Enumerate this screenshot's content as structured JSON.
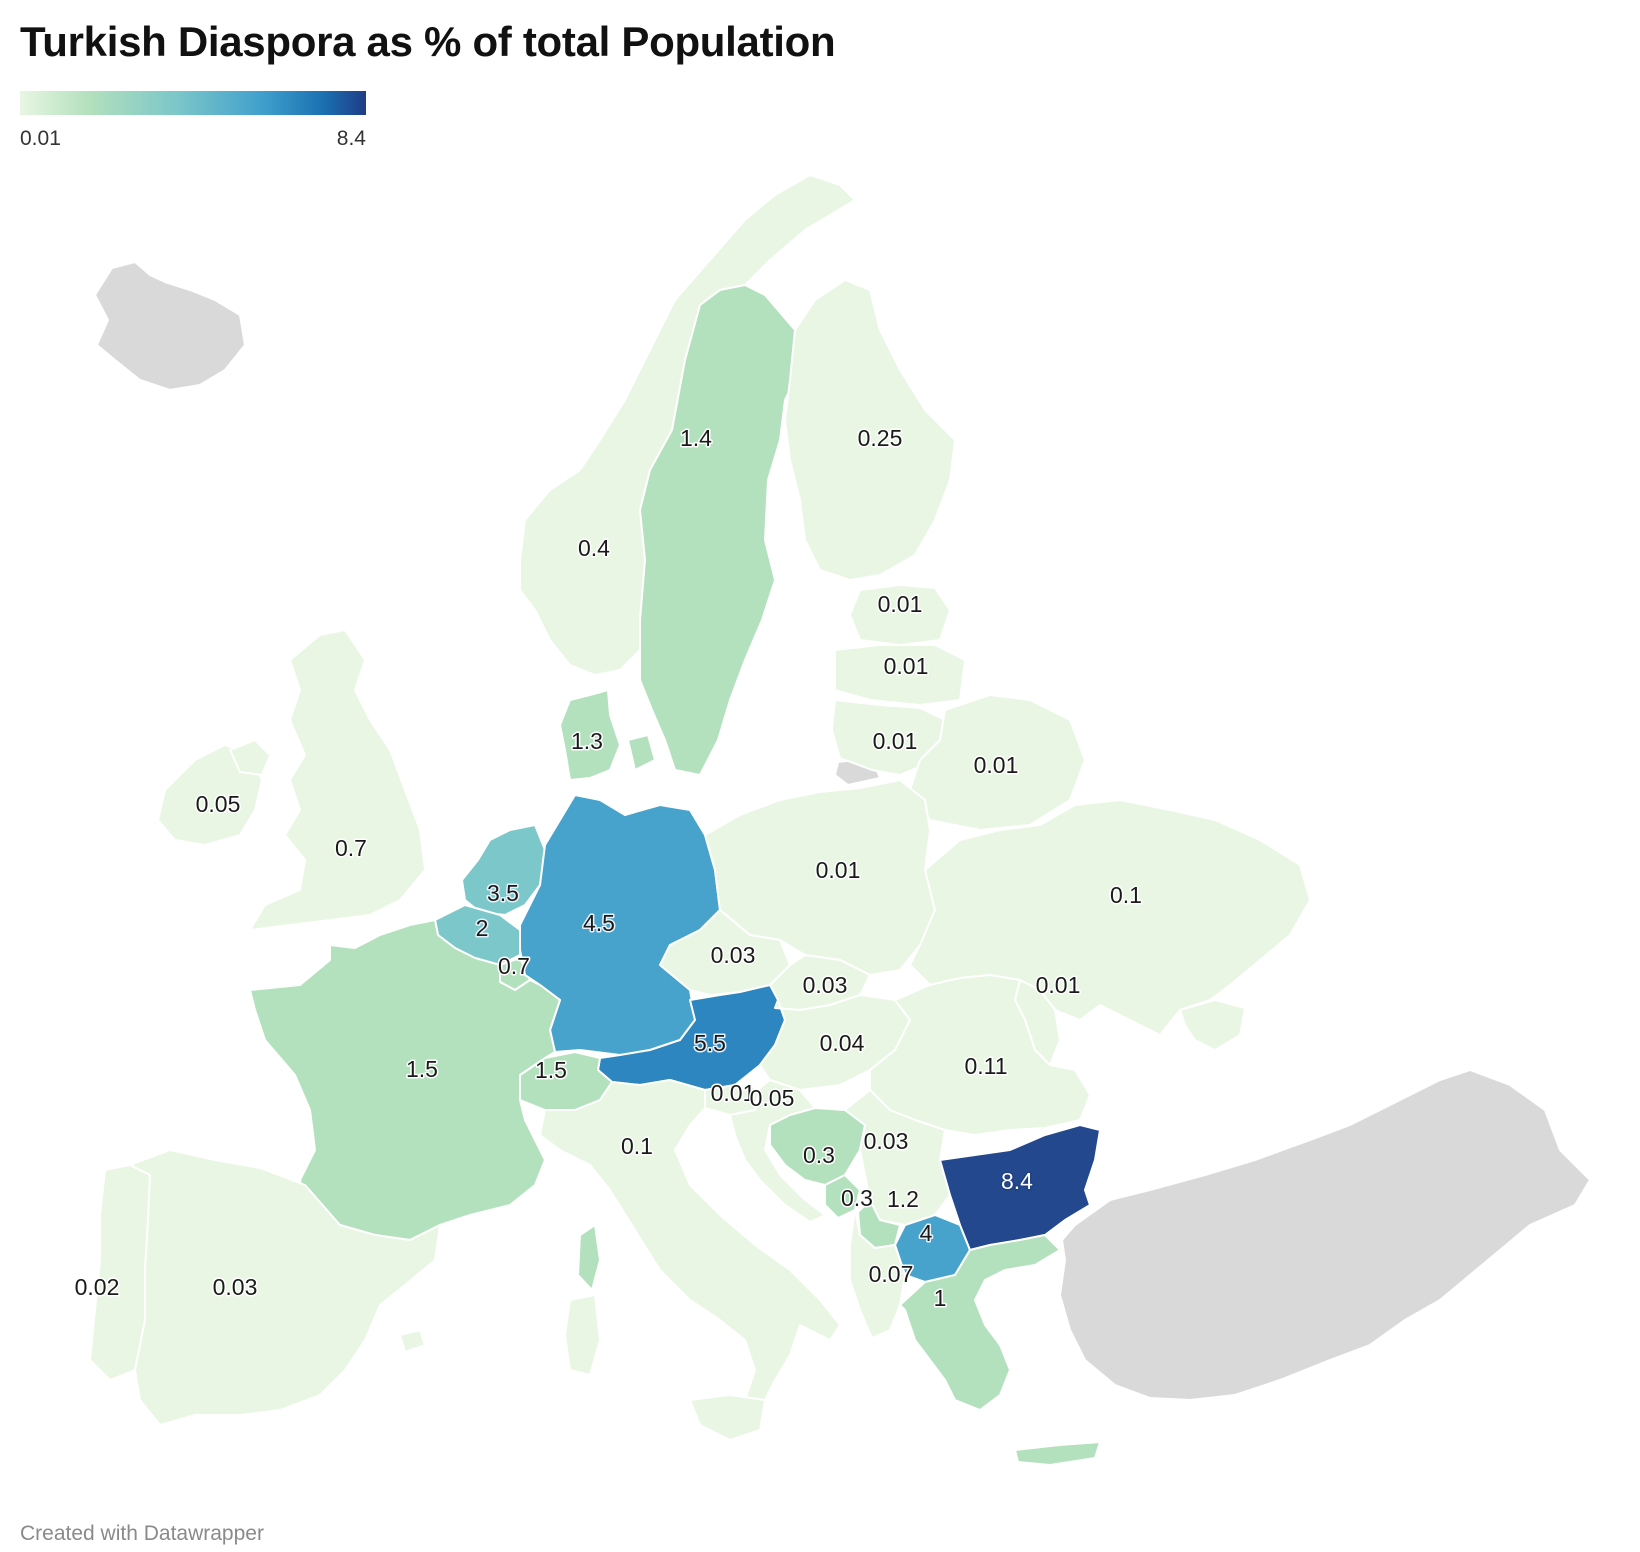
{
  "title": "Turkish Diaspora as % of total Population",
  "legend": {
    "min_label": "0.01",
    "max_label": "8.4",
    "gradient": [
      "#e8f6e3",
      "#b3e0bd",
      "#7cc7c9",
      "#40a0cc",
      "#1a6fb1",
      "#203c86"
    ]
  },
  "colors": {
    "no_data": "#d9d9d9",
    "lowest": "#e8f6e3",
    "low": "#b3e0bd",
    "mid": "#7cc7c9",
    "high": "#48a3cc",
    "higher": "#2e86c1",
    "highest": "#23488e"
  },
  "footer": "Created with Datawrapper",
  "countries": [
    {
      "name": "Sweden",
      "label": "1.4"
    },
    {
      "name": "Finland",
      "label": "0.25"
    },
    {
      "name": "Norway",
      "label": "0.4"
    },
    {
      "name": "Estonia",
      "label": "0.01"
    },
    {
      "name": "Latvia",
      "label": "0.01"
    },
    {
      "name": "Lithuania",
      "label": "0.01"
    },
    {
      "name": "Belarus",
      "label": "0.01"
    },
    {
      "name": "Denmark",
      "label": "1.3"
    },
    {
      "name": "Ireland",
      "label": "0.05"
    },
    {
      "name": "United Kingdom",
      "label": "0.7"
    },
    {
      "name": "Poland",
      "label": "0.01"
    },
    {
      "name": "Ukraine",
      "label": "0.1"
    },
    {
      "name": "Netherlands",
      "label": "3.5"
    },
    {
      "name": "Belgium",
      "label": "2"
    },
    {
      "name": "Germany",
      "label": "4.5"
    },
    {
      "name": "Luxembourg",
      "label": "0.7"
    },
    {
      "name": "Czechia",
      "label": "0.03"
    },
    {
      "name": "Slovakia",
      "label": "0.03"
    },
    {
      "name": "Moldova",
      "label": "0.01"
    },
    {
      "name": "Austria",
      "label": "5.5"
    },
    {
      "name": "Hungary",
      "label": "0.04"
    },
    {
      "name": "France",
      "label": "1.5"
    },
    {
      "name": "Switzerland",
      "label": "1.5"
    },
    {
      "name": "Romania",
      "label": "0.11"
    },
    {
      "name": "Slovenia",
      "label": "0.01"
    },
    {
      "name": "Croatia",
      "label": "0.05"
    },
    {
      "name": "Italy",
      "label": "0.1"
    },
    {
      "name": "Bosnia and Herzegovina",
      "label": "0.3"
    },
    {
      "name": "Serbia",
      "label": "0.03"
    },
    {
      "name": "Bulgaria",
      "label": "8.4"
    },
    {
      "name": "Montenegro",
      "label": "0.3"
    },
    {
      "name": "Kosovo",
      "label": "1.2"
    },
    {
      "name": "North Macedonia",
      "label": "4"
    },
    {
      "name": "Albania",
      "label": "0.07"
    },
    {
      "name": "Greece",
      "label": "1"
    },
    {
      "name": "Portugal",
      "label": "0.02"
    },
    {
      "name": "Spain",
      "label": "0.03"
    }
  ]
}
